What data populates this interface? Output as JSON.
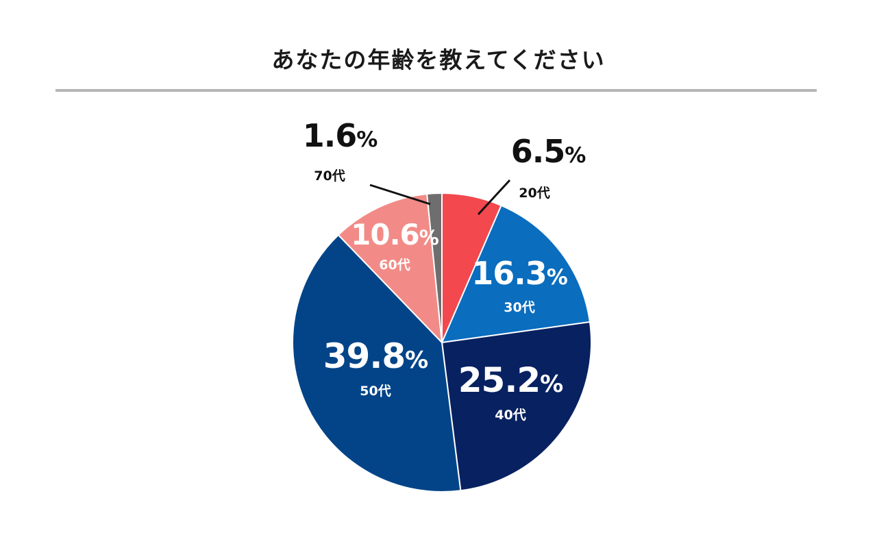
{
  "header": {
    "title": "あなたの年齢を教えてください"
  },
  "chart_data": {
    "type": "pie",
    "title": "あなたの年齢を教えてください",
    "start_angle_deg": 0,
    "direction": "clockwise",
    "categories": [
      "20代",
      "30代",
      "40代",
      "50代",
      "60代",
      "70代"
    ],
    "values": [
      6.5,
      16.3,
      25.2,
      39.8,
      10.6,
      1.6
    ],
    "value_labels": [
      "6.5",
      "16.3",
      "25.2",
      "39.8",
      "10.6",
      "1.6"
    ],
    "unit": "%",
    "colors": [
      "#F2484E",
      "#0A6DBE",
      "#082160",
      "#034488",
      "#F28B87",
      "#6E6E6E"
    ],
    "label_positions": [
      "outside",
      "inside",
      "inside",
      "inside",
      "inside",
      "outside"
    ]
  }
}
